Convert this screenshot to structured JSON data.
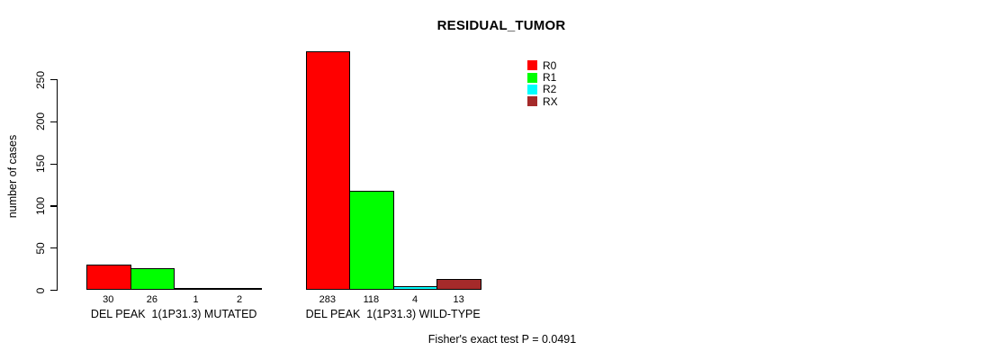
{
  "chart_data": {
    "type": "bar",
    "title": "RESIDUAL_TUMOR",
    "xlabel": "",
    "ylabel": "number of cases",
    "categories": [
      "DEL PEAK  1(1P31.3) MUTATED",
      "DEL PEAK  1(1P31.3) WILD-TYPE"
    ],
    "series": [
      {
        "name": "R0",
        "color": "#ff0000",
        "values": [
          30,
          283
        ]
      },
      {
        "name": "R1",
        "color": "#00ff00",
        "values": [
          26,
          118
        ]
      },
      {
        "name": "R2",
        "color": "#00ffff",
        "values": [
          1,
          4
        ]
      },
      {
        "name": "RX",
        "color": "#a52a2a",
        "values": [
          2,
          13
        ]
      }
    ],
    "yticks": [
      0,
      50,
      100,
      150,
      200,
      250
    ],
    "ylim": [
      0,
      285
    ],
    "grid": false,
    "bar_borders": "#000000",
    "legend_position": "top-right-inside",
    "value_labels_under_bars": true,
    "annotation": "Fisher's exact test P = 0.0491"
  }
}
